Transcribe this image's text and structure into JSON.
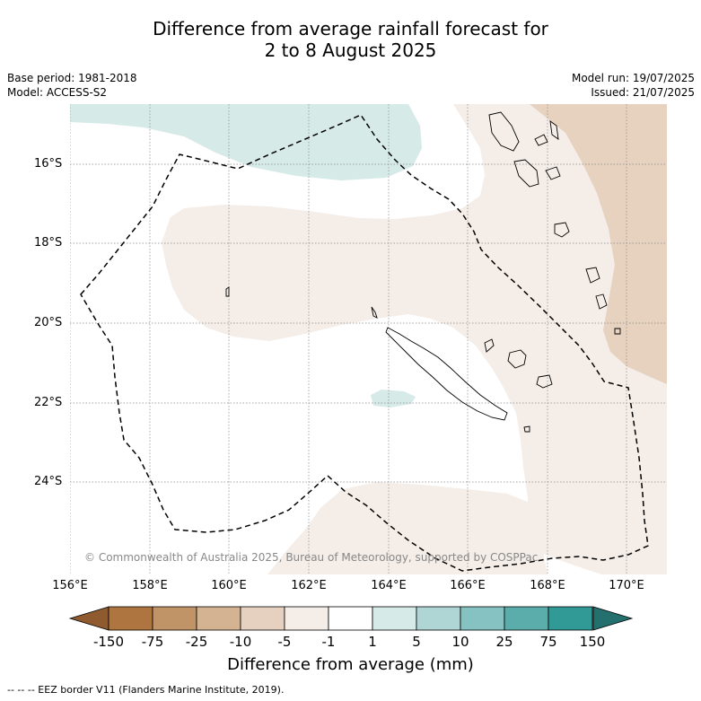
{
  "title": {
    "line1": "Difference from average rainfall forecast for",
    "line2": "2 to 8 August 2025"
  },
  "meta": {
    "base_period": "Base period: 1981-2018",
    "model": "Model: ACCESS-S2",
    "model_run": "Model run: 19/07/2025",
    "issued": "Issued: 21/07/2025"
  },
  "map": {
    "latitude_labels": [
      "16°S",
      "18°S",
      "20°S",
      "22°S",
      "24°S"
    ],
    "longitude_labels": [
      "156°E",
      "158°E",
      "160°E",
      "162°E",
      "164°E",
      "166°E",
      "168°E",
      "170°E"
    ],
    "copyright": "© Commonwealth of Australia 2025, Bureau of Meteorology, supported by COSPPac",
    "colors": {
      "light_dry": "#f4ede8",
      "mid_dry": "#e6d2bf",
      "light_wet": "#d6eae8"
    }
  },
  "colorbar": {
    "ticks": [
      "-150",
      "-75",
      "-25",
      "-10",
      "-5",
      "-1",
      "1",
      "5",
      "10",
      "25",
      "75",
      "150"
    ],
    "colors": [
      "#ae7540",
      "#c19468",
      "#d4b393",
      "#e6d0bf",
      "#f4ede8",
      "#ffffff",
      "#d6eae8",
      "#afd6d5",
      "#86c2c1",
      "#5aadab",
      "#319996"
    ],
    "extend_low_color": "#8f5a2e",
    "extend_high_color": "#23706e",
    "label": "Difference from average (mm)"
  },
  "footnote": "--  --  -- EEZ border V11 (Flanders Marine Institute, 2019)."
}
